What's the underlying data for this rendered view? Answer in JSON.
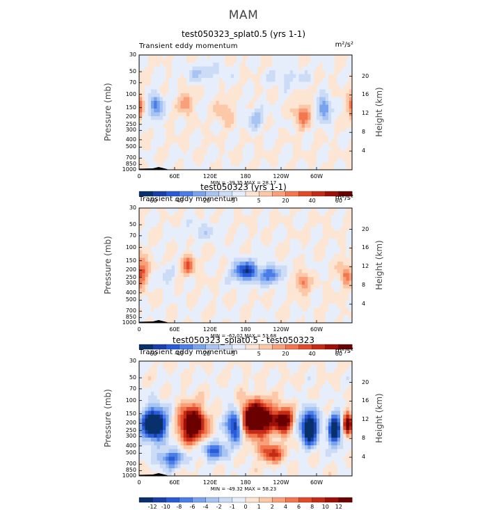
{
  "figure_title": "MAM",
  "chart_data": [
    {
      "type": "heatmap",
      "title": "test050323_splat0.5 (yrs 1-1)",
      "subtitle_left": "Transient eddy momentum",
      "units": "m²/s²",
      "ylabel": "Pressure (mb)",
      "ylabel_right": "Height (km)",
      "pressure_ticks": [
        "30",
        "50",
        "70",
        "100",
        "150",
        "200",
        "250",
        "300",
        "400",
        "500",
        "700",
        "850",
        "1000"
      ],
      "height_ticks": [
        "20",
        "16",
        "12",
        "8",
        "4"
      ],
      "x_ticks": [
        "0",
        "60E",
        "120E",
        "180",
        "120W",
        "60W"
      ],
      "min_max_text": "MIN = -39.35   MAX = 28.17",
      "colorbar_labels": [
        "-60",
        "-40",
        "-20",
        "-5",
        "5",
        "20",
        "40",
        "60"
      ],
      "levels": [
        -70,
        -60,
        -50,
        -40,
        -30,
        -20,
        -10,
        -5,
        0,
        5,
        10,
        20,
        30,
        40,
        50,
        60,
        70
      ],
      "min": -39.35,
      "max": 28.17
    },
    {
      "type": "heatmap",
      "title": "test050323 (yrs 1-1)",
      "subtitle_left": "Transient eddy momentum",
      "units": "m²/s²",
      "ylabel": "Pressure (mb)",
      "ylabel_right": "Height (km)",
      "pressure_ticks": [
        "30",
        "50",
        "70",
        "100",
        "150",
        "200",
        "250",
        "300",
        "400",
        "500",
        "700",
        "850",
        "1000"
      ],
      "height_ticks": [
        "20",
        "16",
        "12",
        "8",
        "4"
      ],
      "x_ticks": [
        "0",
        "60E",
        "120E",
        "180",
        "120W",
        "60W"
      ],
      "min_max_text": "MIN = -62.02   MAX = 53.68",
      "colorbar_labels": [
        "-60",
        "-40",
        "-20",
        "-5",
        "5",
        "20",
        "40",
        "60"
      ],
      "levels": [
        -70,
        -60,
        -50,
        -40,
        -30,
        -20,
        -10,
        -5,
        0,
        5,
        10,
        20,
        30,
        40,
        50,
        60,
        70
      ],
      "min": -62.02,
      "max": 53.68
    },
    {
      "type": "heatmap",
      "title": "test050323_splat0.5 - test050323",
      "subtitle_left": "Transient eddy momentum",
      "units": "m²/s²",
      "ylabel": "Pressure (mb)",
      "ylabel_right": "Height (km)",
      "pressure_ticks": [
        "30",
        "50",
        "70",
        "100",
        "150",
        "200",
        "250",
        "300",
        "400",
        "500",
        "700",
        "850",
        "1000"
      ],
      "height_ticks": [
        "20",
        "16",
        "12",
        "8",
        "4"
      ],
      "x_ticks": [
        "0",
        "60E",
        "120E",
        "180",
        "120W",
        "60W"
      ],
      "min_max_text": "MIN = -49.32   MAX = 58.23",
      "colorbar_labels": [
        "-12",
        "-10",
        "-8",
        "-6",
        "-4",
        "-2",
        "-1",
        "0",
        "1",
        "2",
        "4",
        "6",
        "8",
        "10",
        "12"
      ],
      "levels": [
        -14,
        -12,
        -10,
        -8,
        -6,
        -4,
        -2,
        -1,
        0,
        1,
        2,
        4,
        6,
        8,
        10,
        12,
        14
      ],
      "min": -49.32,
      "max": 58.23
    }
  ],
  "colors": {
    "colorbar": [
      "#08306b",
      "#1b3fa8",
      "#2a5bd7",
      "#4a7de8",
      "#7aa3ee",
      "#a7c4f3",
      "#cddcf6",
      "#e6eefb",
      "#fde5d4",
      "#fcc8a8",
      "#f9a07a",
      "#f2764e",
      "#e04a2a",
      "#c42a14",
      "#9c1008",
      "#6b0000"
    ],
    "terrain": "#000000"
  }
}
